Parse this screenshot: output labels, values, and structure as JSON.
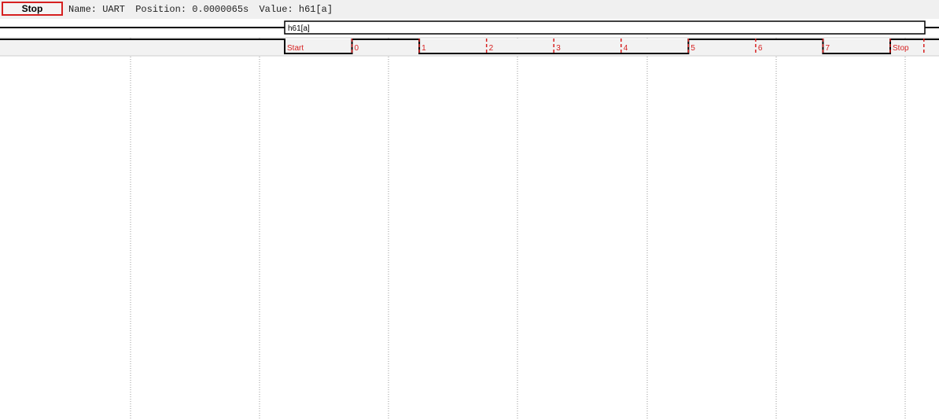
{
  "toolbar": {
    "stop_label": "Stop",
    "name_text": "Name: UART",
    "position_text": "Position: 0.0000065s",
    "value_text": "Value: h61[a]"
  },
  "bus_row": {
    "value_label": "h61[a]"
  },
  "bits_row": {
    "labels": [
      "Start",
      "0",
      "1",
      "2",
      "3",
      "4",
      "5",
      "6",
      "7",
      "Stop"
    ],
    "levels": [
      0,
      1,
      0,
      0,
      0,
      0,
      1,
      1,
      0,
      1
    ]
  },
  "colors": {
    "accent": "#d62020",
    "signal": "#000000",
    "grid": "#999999",
    "row_bg": "#f2f2f2"
  }
}
